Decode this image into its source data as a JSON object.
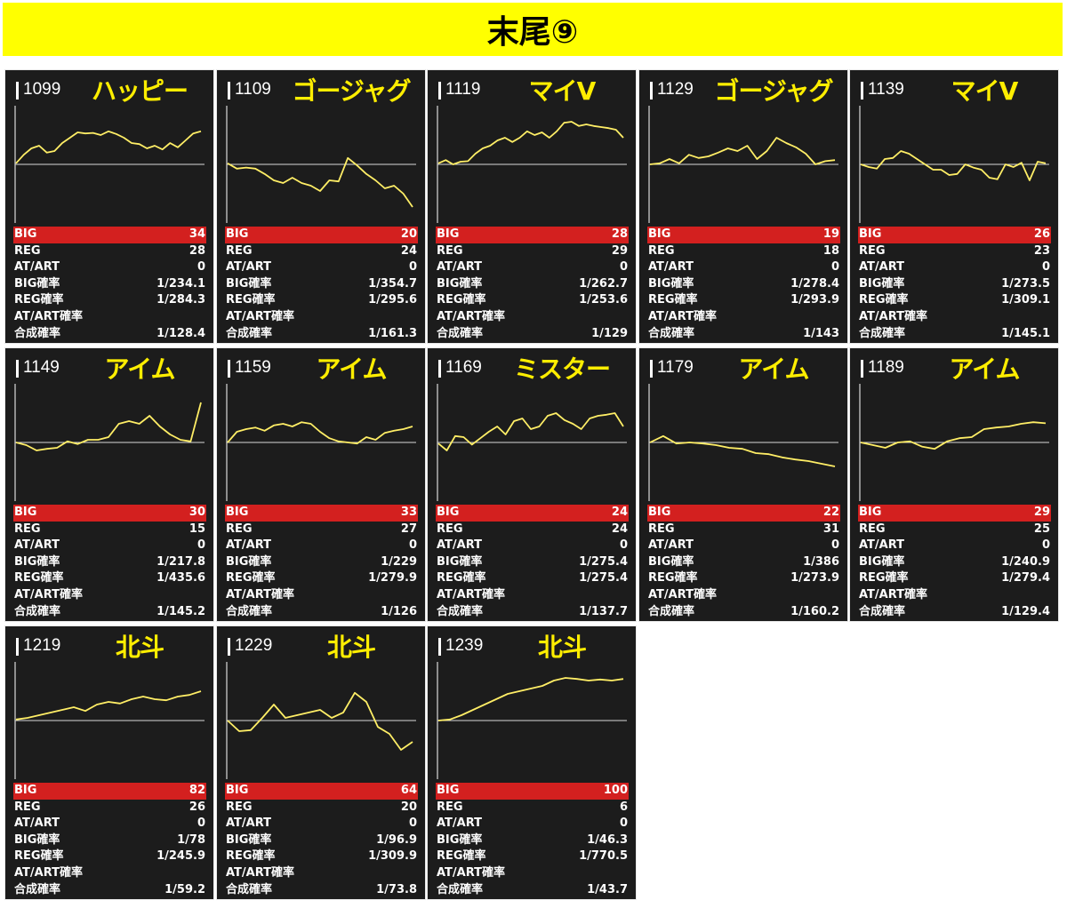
{
  "title": "末尾⑨",
  "colors": {
    "banner": "#ffff00",
    "panel_bg": "#1c1c1c",
    "line": "#ffee66",
    "big_row": "#d3201f",
    "name": "#ffee00"
  },
  "stat_labels": {
    "big": "BIG",
    "reg": "REG",
    "at": "AT/ART",
    "big_rate": "BIG確率",
    "reg_rate": "REG確率",
    "at_rate": "AT/ART確率",
    "total_rate": "合成確率"
  },
  "chart_data": [
    {
      "type": "line",
      "title": "1099 ハッピー",
      "ylim": [
        -1,
        1
      ],
      "y": [
        0.02,
        0.18,
        0.3,
        0.35,
        0.22,
        0.25,
        0.4,
        0.5,
        0.6,
        0.58,
        0.59,
        0.55,
        0.62,
        0.57,
        0.5,
        0.4,
        0.38,
        0.3,
        0.35,
        0.28,
        0.4,
        0.32,
        0.45,
        0.58,
        0.62
      ]
    },
    {
      "type": "line",
      "title": "1109 ゴージャグ",
      "ylim": [
        -1,
        1
      ],
      "y": [
        0.02,
        -0.08,
        -0.06,
        -0.08,
        -0.18,
        -0.3,
        -0.35,
        -0.25,
        -0.35,
        -0.4,
        -0.5,
        -0.3,
        -0.32,
        0.12,
        -0.02,
        -0.18,
        -0.3,
        -0.45,
        -0.4,
        -0.55,
        -0.8
      ]
    },
    {
      "type": "line",
      "title": "1119 マイV",
      "ylim": [
        -1,
        1
      ],
      "y": [
        0.02,
        0.08,
        0.0,
        0.05,
        0.06,
        0.2,
        0.3,
        0.35,
        0.45,
        0.5,
        0.42,
        0.5,
        0.62,
        0.55,
        0.6,
        0.5,
        0.62,
        0.78,
        0.8,
        0.72,
        0.75,
        0.72,
        0.7,
        0.68,
        0.65,
        0.5
      ]
    },
    {
      "type": "line",
      "title": "1129 ゴージャグ",
      "ylim": [
        -1,
        1
      ],
      "y": [
        0.0,
        0.02,
        0.1,
        0.02,
        0.18,
        0.12,
        0.15,
        0.22,
        0.3,
        0.25,
        0.35,
        0.1,
        0.25,
        0.5,
        0.4,
        0.32,
        0.2,
        0.0,
        0.06,
        0.08
      ]
    },
    {
      "type": "line",
      "title": "1139 マイV",
      "ylim": [
        -1,
        1
      ],
      "y": [
        0.0,
        -0.05,
        -0.08,
        0.1,
        0.12,
        0.25,
        0.2,
        0.1,
        0.0,
        -0.1,
        -0.1,
        -0.2,
        -0.18,
        0.0,
        -0.06,
        -0.1,
        -0.25,
        -0.28,
        0.0,
        -0.05,
        0.03,
        -0.3,
        0.05,
        0.02
      ]
    },
    {
      "type": "line",
      "title": "1149 アイム",
      "ylim": [
        -1,
        1
      ],
      "y": [
        0.0,
        -0.05,
        -0.15,
        -0.12,
        -0.1,
        0.02,
        -0.03,
        0.05,
        0.05,
        0.1,
        0.35,
        0.4,
        0.35,
        0.5,
        0.3,
        0.15,
        0.05,
        0.02,
        0.75
      ]
    },
    {
      "type": "line",
      "title": "1159 アイム",
      "ylim": [
        -1,
        1
      ],
      "y": [
        0.0,
        0.2,
        0.25,
        0.28,
        0.22,
        0.32,
        0.35,
        0.3,
        0.38,
        0.35,
        0.2,
        0.08,
        0.02,
        0.0,
        -0.02,
        0.1,
        0.05,
        0.18,
        0.22,
        0.25,
        0.3
      ]
    },
    {
      "type": "line",
      "title": "1169 ミスター",
      "ylim": [
        -1,
        1
      ],
      "y": [
        -0.02,
        -0.15,
        0.12,
        0.1,
        -0.04,
        0.08,
        0.2,
        0.3,
        0.15,
        0.4,
        0.45,
        0.25,
        0.3,
        0.5,
        0.55,
        0.42,
        0.35,
        0.25,
        0.45,
        0.5,
        0.52,
        0.55,
        0.3
      ]
    },
    {
      "type": "line",
      "title": "1179 アイム",
      "ylim": [
        -1,
        1
      ],
      "y": [
        0.0,
        0.12,
        -0.02,
        0.0,
        -0.02,
        -0.05,
        -0.1,
        -0.12,
        -0.2,
        -0.22,
        -0.28,
        -0.32,
        -0.35,
        -0.4,
        -0.45
      ]
    },
    {
      "type": "line",
      "title": "1189 アイム",
      "ylim": [
        -1,
        1
      ],
      "y": [
        0.0,
        -0.05,
        -0.1,
        0.0,
        0.02,
        -0.08,
        -0.12,
        0.02,
        0.08,
        0.1,
        0.25,
        0.28,
        0.3,
        0.35,
        0.38,
        0.36
      ]
    },
    {
      "type": "line",
      "title": "1219 北斗",
      "ylim": [
        -1,
        1
      ],
      "y": [
        0.02,
        0.05,
        0.1,
        0.15,
        0.2,
        0.25,
        0.18,
        0.3,
        0.35,
        0.32,
        0.4,
        0.45,
        0.4,
        0.38,
        0.45,
        0.48,
        0.55
      ]
    },
    {
      "type": "line",
      "title": "1229 北斗",
      "ylim": [
        -1,
        1
      ],
      "y": [
        0.0,
        -0.2,
        -0.18,
        0.05,
        0.3,
        0.05,
        0.1,
        0.15,
        0.2,
        0.05,
        0.15,
        0.52,
        0.35,
        -0.12,
        -0.25,
        -0.55,
        -0.4
      ]
    },
    {
      "type": "line",
      "title": "1239 北斗",
      "ylim": [
        -1,
        1
      ],
      "y": [
        0.0,
        0.02,
        0.1,
        0.2,
        0.3,
        0.4,
        0.5,
        0.55,
        0.6,
        0.65,
        0.75,
        0.8,
        0.78,
        0.75,
        0.77,
        0.75,
        0.78
      ]
    }
  ],
  "machines": [
    {
      "num": "1099",
      "name": "ハッピー",
      "big": "34",
      "reg": "28",
      "at": "0",
      "big_rate": "1/234.1",
      "reg_rate": "1/284.3",
      "at_rate": "",
      "total_rate": "1/128.4"
    },
    {
      "num": "1109",
      "name": "ゴージャグ",
      "big": "20",
      "reg": "24",
      "at": "0",
      "big_rate": "1/354.7",
      "reg_rate": "1/295.6",
      "at_rate": "",
      "total_rate": "1/161.3"
    },
    {
      "num": "1119",
      "name": "マイV",
      "big": "28",
      "reg": "29",
      "at": "0",
      "big_rate": "1/262.7",
      "reg_rate": "1/253.6",
      "at_rate": "",
      "total_rate": "1/129"
    },
    {
      "num": "1129",
      "name": "ゴージャグ",
      "big": "19",
      "reg": "18",
      "at": "0",
      "big_rate": "1/278.4",
      "reg_rate": "1/293.9",
      "at_rate": "",
      "total_rate": "1/143"
    },
    {
      "num": "1139",
      "name": "マイV",
      "big": "26",
      "reg": "23",
      "at": "0",
      "big_rate": "1/273.5",
      "reg_rate": "1/309.1",
      "at_rate": "",
      "total_rate": "1/145.1"
    },
    {
      "num": "1149",
      "name": "アイム",
      "big": "30",
      "reg": "15",
      "at": "0",
      "big_rate": "1/217.8",
      "reg_rate": "1/435.6",
      "at_rate": "",
      "total_rate": "1/145.2"
    },
    {
      "num": "1159",
      "name": "アイム",
      "big": "33",
      "reg": "27",
      "at": "0",
      "big_rate": "1/229",
      "reg_rate": "1/279.9",
      "at_rate": "",
      "total_rate": "1/126"
    },
    {
      "num": "1169",
      "name": "ミスター",
      "big": "24",
      "reg": "24",
      "at": "0",
      "big_rate": "1/275.4",
      "reg_rate": "1/275.4",
      "at_rate": "",
      "total_rate": "1/137.7"
    },
    {
      "num": "1179",
      "name": "アイム",
      "big": "22",
      "reg": "31",
      "at": "0",
      "big_rate": "1/386",
      "reg_rate": "1/273.9",
      "at_rate": "",
      "total_rate": "1/160.2"
    },
    {
      "num": "1189",
      "name": "アイム",
      "big": "29",
      "reg": "25",
      "at": "0",
      "big_rate": "1/240.9",
      "reg_rate": "1/279.4",
      "at_rate": "",
      "total_rate": "1/129.4"
    },
    {
      "num": "1219",
      "name": "北斗",
      "big": "82",
      "reg": "26",
      "at": "0",
      "big_rate": "1/78",
      "reg_rate": "1/245.9",
      "at_rate": "",
      "total_rate": "1/59.2"
    },
    {
      "num": "1229",
      "name": "北斗",
      "big": "64",
      "reg": "20",
      "at": "0",
      "big_rate": "1/96.9",
      "reg_rate": "1/309.9",
      "at_rate": "",
      "total_rate": "1/73.8"
    },
    {
      "num": "1239",
      "name": "北斗",
      "big": "100",
      "reg": "6",
      "at": "0",
      "big_rate": "1/46.3",
      "reg_rate": "1/770.5",
      "at_rate": "",
      "total_rate": "1/43.7"
    }
  ]
}
